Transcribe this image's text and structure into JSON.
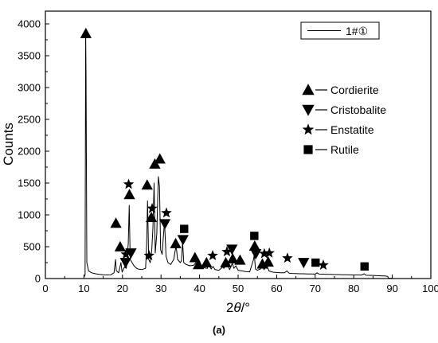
{
  "chart_data": {
    "type": "line",
    "xlabel_main": "2",
    "xlabel_theta": "θ",
    "xlabel_unit": "/°",
    "ylabel": "Counts",
    "xlim": [
      0,
      100
    ],
    "ylim": [
      0,
      4200
    ],
    "x_ticks": [
      0,
      10,
      20,
      30,
      40,
      50,
      60,
      70,
      80,
      90,
      100
    ],
    "y_ticks": [
      0,
      500,
      1000,
      1500,
      2000,
      2500,
      3000,
      3500,
      4000
    ],
    "legend_series": "1#①",
    "legend_position": "top-right",
    "grid": false,
    "caption": "(a)",
    "series": [
      {
        "name": "1#①",
        "color": "#000000",
        "points": [
          [
            10,
            20
          ],
          [
            10.3,
            60
          ],
          [
            10.45,
            3850
          ],
          [
            10.55,
            3150
          ],
          [
            10.75,
            250
          ],
          [
            11.2,
            120
          ],
          [
            12,
            90
          ],
          [
            13,
            75
          ],
          [
            14,
            65
          ],
          [
            15,
            60
          ],
          [
            16,
            58
          ],
          [
            17,
            60
          ],
          [
            17.8,
            90
          ],
          [
            18.2,
            300
          ],
          [
            18.4,
            120
          ],
          [
            19,
            90
          ],
          [
            19.6,
            250
          ],
          [
            19.9,
            100
          ],
          [
            20.5,
            180
          ],
          [
            21,
            160
          ],
          [
            21.5,
            550
          ],
          [
            21.75,
            1150
          ],
          [
            22,
            300
          ],
          [
            22.5,
            250
          ],
          [
            23,
            200
          ],
          [
            23.5,
            170
          ],
          [
            24,
            150
          ],
          [
            25,
            140
          ],
          [
            26,
            160
          ],
          [
            26.3,
            600
          ],
          [
            26.5,
            1220
          ],
          [
            26.8,
            300
          ],
          [
            27.2,
            250
          ],
          [
            27.6,
            450
          ],
          [
            27.9,
            800
          ],
          [
            28.2,
            1500
          ],
          [
            28.5,
            400
          ],
          [
            28.9,
            700
          ],
          [
            29.3,
            1600
          ],
          [
            29.6,
            1450
          ],
          [
            29.9,
            450
          ],
          [
            30.3,
            380
          ],
          [
            30.6,
            650
          ],
          [
            30.9,
            900
          ],
          [
            31.3,
            350
          ],
          [
            31.8,
            250
          ],
          [
            32.5,
            220
          ],
          [
            33.3,
            300
          ],
          [
            33.9,
            520
          ],
          [
            34.3,
            300
          ],
          [
            35,
            250
          ],
          [
            35.3,
            280
          ],
          [
            35.6,
            580
          ],
          [
            35.9,
            250
          ],
          [
            36.5,
            220
          ],
          [
            37.5,
            200
          ],
          [
            38.5,
            210
          ],
          [
            39,
            250
          ],
          [
            39.5,
            180
          ],
          [
            40,
            170
          ],
          [
            40.5,
            200
          ],
          [
            41,
            170
          ],
          [
            42,
            160
          ],
          [
            42.3,
            230
          ],
          [
            43,
            150
          ],
          [
            43.5,
            190
          ],
          [
            44,
            140
          ],
          [
            45,
            130
          ],
          [
            46,
            180
          ],
          [
            46.3,
            160
          ],
          [
            47.2,
            220
          ],
          [
            47.8,
            140
          ],
          [
            48.5,
            240
          ],
          [
            48.9,
            160
          ],
          [
            49.4,
            200
          ],
          [
            50,
            130
          ],
          [
            51,
            120
          ],
          [
            52,
            110
          ],
          [
            53,
            105
          ],
          [
            54,
            300
          ],
          [
            54.2,
            380
          ],
          [
            54.5,
            150
          ],
          [
            55,
            130
          ],
          [
            55.8,
            150
          ],
          [
            56.3,
            220
          ],
          [
            56.7,
            140
          ],
          [
            57.5,
            200
          ],
          [
            58,
            120
          ],
          [
            59,
            100
          ],
          [
            60,
            95
          ],
          [
            61,
            90
          ],
          [
            62,
            90
          ],
          [
            62.7,
            120
          ],
          [
            63.2,
            85
          ],
          [
            64,
            80
          ],
          [
            65,
            78
          ],
          [
            66,
            75
          ],
          [
            67,
            75
          ],
          [
            68,
            72
          ],
          [
            69,
            72
          ],
          [
            70,
            70
          ],
          [
            70.5,
            90
          ],
          [
            71,
            70
          ],
          [
            72,
            68
          ],
          [
            73,
            65
          ],
          [
            74,
            65
          ],
          [
            75,
            62
          ],
          [
            76,
            62
          ],
          [
            77,
            60
          ],
          [
            78,
            60
          ],
          [
            79,
            58
          ],
          [
            80,
            57
          ],
          [
            81,
            56
          ],
          [
            82,
            55
          ],
          [
            82.7,
            75
          ],
          [
            83.2,
            52
          ],
          [
            84,
            50
          ],
          [
            85,
            48
          ],
          [
            86,
            45
          ],
          [
            87,
            42
          ],
          [
            88,
            40
          ],
          [
            88.8,
            35
          ],
          [
            89,
            5
          ],
          [
            90,
            5
          ]
        ]
      }
    ],
    "phase_legend": [
      {
        "name": "Cordierite",
        "marker": "triangle-up"
      },
      {
        "name": "Cristobalite",
        "marker": "triangle-down"
      },
      {
        "name": "Enstatite",
        "marker": "star"
      },
      {
        "name": "Rutile",
        "marker": "square"
      }
    ],
    "phase_markers": [
      {
        "phase": "Cordierite",
        "x": 10.5,
        "y": 3850
      },
      {
        "phase": "Cordierite",
        "x": 18.3,
        "y": 870
      },
      {
        "phase": "Cordierite",
        "x": 19.4,
        "y": 500
      },
      {
        "phase": "Cordierite",
        "x": 21.8,
        "y": 1320
      },
      {
        "phase": "Cordierite",
        "x": 26.4,
        "y": 1470
      },
      {
        "phase": "Cordierite",
        "x": 27.5,
        "y": 960
      },
      {
        "phase": "Cordierite",
        "x": 28.4,
        "y": 1800
      },
      {
        "phase": "Cordierite",
        "x": 29.7,
        "y": 1880
      },
      {
        "phase": "Cordierite",
        "x": 33.8,
        "y": 550
      },
      {
        "phase": "Cordierite",
        "x": 38.8,
        "y": 330
      },
      {
        "phase": "Cordierite",
        "x": 39.7,
        "y": 220
      },
      {
        "phase": "Cordierite",
        "x": 41.8,
        "y": 250
      },
      {
        "phase": "Cordierite",
        "x": 46.8,
        "y": 250
      },
      {
        "phase": "Cordierite",
        "x": 48.6,
        "y": 310
      },
      {
        "phase": "Cordierite",
        "x": 50.5,
        "y": 290
      },
      {
        "phase": "Cordierite",
        "x": 54.3,
        "y": 510
      },
      {
        "phase": "Cordierite",
        "x": 56.3,
        "y": 230
      },
      {
        "phase": "Cordierite",
        "x": 57.8,
        "y": 260
      },
      {
        "phase": "Cristobalite",
        "x": 20.8,
        "y": 250
      },
      {
        "phase": "Cristobalite",
        "x": 22.2,
        "y": 400
      },
      {
        "phase": "Cristobalite",
        "x": 31.0,
        "y": 860
      },
      {
        "phase": "Cristobalite",
        "x": 35.7,
        "y": 610
      },
      {
        "phase": "Cristobalite",
        "x": 48.4,
        "y": 460
      },
      {
        "phase": "Cristobalite",
        "x": 54.6,
        "y": 390
      },
      {
        "phase": "Cristobalite",
        "x": 67.0,
        "y": 250
      },
      {
        "phase": "Enstatite",
        "x": 20.9,
        "y": 380
      },
      {
        "phase": "Enstatite",
        "x": 21.6,
        "y": 1480
      },
      {
        "phase": "Enstatite",
        "x": 26.9,
        "y": 360
      },
      {
        "phase": "Enstatite",
        "x": 27.7,
        "y": 1100
      },
      {
        "phase": "Enstatite",
        "x": 31.4,
        "y": 1030
      },
      {
        "phase": "Enstatite",
        "x": 43.4,
        "y": 360
      },
      {
        "phase": "Enstatite",
        "x": 47.1,
        "y": 420
      },
      {
        "phase": "Enstatite",
        "x": 56.8,
        "y": 390
      },
      {
        "phase": "Enstatite",
        "x": 58.1,
        "y": 400
      },
      {
        "phase": "Enstatite",
        "x": 62.8,
        "y": 320
      },
      {
        "phase": "Enstatite",
        "x": 72.1,
        "y": 210
      },
      {
        "phase": "Rutile",
        "x": 36.0,
        "y": 780
      },
      {
        "phase": "Rutile",
        "x": 54.2,
        "y": 670
      },
      {
        "phase": "Rutile",
        "x": 70.1,
        "y": 250
      },
      {
        "phase": "Rutile",
        "x": 82.8,
        "y": 190
      }
    ]
  }
}
